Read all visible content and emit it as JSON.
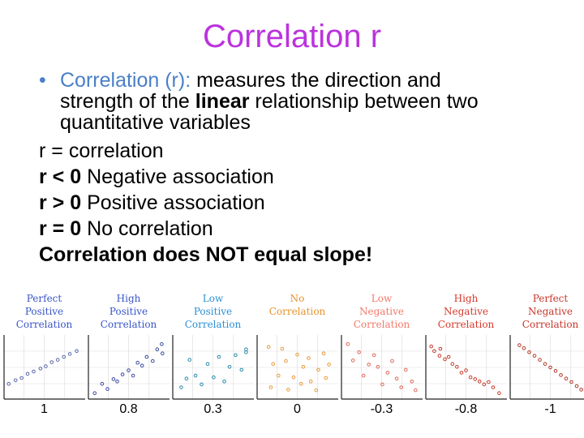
{
  "title": "Correlation r",
  "colors": {
    "title": "#bb33dd",
    "bullet_lead": "#4a7fc8",
    "panel_label_colors": [
      "#3a55c8",
      "#3a55c8",
      "#2c8fd6",
      "#e6922c",
      "#f07a6a",
      "#d63a2a",
      "#c8362a"
    ],
    "dot_colors": [
      "#5a6aa8",
      "#3a4aa0",
      "#2a8aa8",
      "#e89a3a",
      "#e06858",
      "#cc3a2a",
      "#b03a2a"
    ]
  },
  "bullet": {
    "marker": "•",
    "lead": "Correlation (r):",
    "text1": " measures the direction and",
    "text2a": "strength of the ",
    "text2b": "linear",
    "text2c": " relationship between two",
    "text3": "quantitative variables"
  },
  "lines": {
    "l1": "r = correlation",
    "l2_bold": "r < 0",
    "l2_rest": " Negative association",
    "l3_bold": "r > 0",
    "l3_rest": " Positive association",
    "l4_bold": "r = 0",
    "l4_rest": " No correlation",
    "l5": "Correlation does NOT equal slope!"
  },
  "panels": [
    {
      "label": [
        "Perfect",
        "Positive",
        "Correlation"
      ],
      "r": "1"
    },
    {
      "label": [
        "High",
        "Positive",
        "Correlation"
      ],
      "r": "0.8"
    },
    {
      "label": [
        "Low",
        "Positive",
        "Correlation"
      ],
      "r": "0.3"
    },
    {
      "label": [
        "No",
        "Correlation"
      ],
      "r": "0"
    },
    {
      "label": [
        "Low",
        "Negative",
        "Correlation"
      ],
      "r": "-0.3"
    },
    {
      "label": [
        "High",
        "Negative",
        "Correlation"
      ],
      "r": "-0.8"
    },
    {
      "label": [
        "Perfect",
        "Negative",
        "Correlation"
      ],
      "r": "-1"
    }
  ],
  "chart_data": {
    "type": "scatter",
    "title": "",
    "xlabel": "",
    "ylabel": "",
    "xlim": [
      0,
      10
    ],
    "ylim": [
      0,
      10
    ],
    "series": [
      {
        "name": "1",
        "points": [
          [
            0.3,
            2.2
          ],
          [
            1.2,
            2.8
          ],
          [
            2.0,
            3.2
          ],
          [
            2.8,
            3.9
          ],
          [
            3.6,
            4.3
          ],
          [
            4.5,
            4.8
          ],
          [
            5.2,
            5.2
          ],
          [
            6.0,
            5.9
          ],
          [
            6.8,
            6.3
          ],
          [
            7.6,
            6.8
          ],
          [
            8.4,
            7.3
          ],
          [
            9.3,
            7.8
          ]
        ]
      },
      {
        "name": "0.8",
        "points": [
          [
            0.5,
            0.6
          ],
          [
            1.5,
            2.2
          ],
          [
            2.2,
            1.3
          ],
          [
            3.0,
            3.0
          ],
          [
            3.5,
            2.6
          ],
          [
            4.2,
            3.8
          ],
          [
            5.0,
            4.5
          ],
          [
            5.6,
            3.6
          ],
          [
            6.2,
            5.8
          ],
          [
            6.8,
            5.3
          ],
          [
            7.4,
            6.8
          ],
          [
            8.2,
            6.1
          ],
          [
            8.8,
            8.1
          ],
          [
            9.5,
            7.4
          ],
          [
            9.4,
            9.0
          ]
        ]
      },
      {
        "name": "0.3",
        "points": [
          [
            0.8,
            1.6
          ],
          [
            1.5,
            3.1
          ],
          [
            1.9,
            6.3
          ],
          [
            2.7,
            3.6
          ],
          [
            3.5,
            2.1
          ],
          [
            4.3,
            5.6
          ],
          [
            5.1,
            3.3
          ],
          [
            5.8,
            6.8
          ],
          [
            6.5,
            2.6
          ],
          [
            7.2,
            5.1
          ],
          [
            8.0,
            7.1
          ],
          [
            8.8,
            4.6
          ],
          [
            9.4,
            8.1
          ],
          [
            9.4,
            7.6
          ]
        ]
      },
      {
        "name": "0",
        "points": [
          [
            1.2,
            8.5
          ],
          [
            3.0,
            8.2
          ],
          [
            5.0,
            7.2
          ],
          [
            6.5,
            6.6
          ],
          [
            8.5,
            7.4
          ],
          [
            1.8,
            5.6
          ],
          [
            3.5,
            6.1
          ],
          [
            5.8,
            5.1
          ],
          [
            7.8,
            4.6
          ],
          [
            2.5,
            3.6
          ],
          [
            4.5,
            3.3
          ],
          [
            6.8,
            2.6
          ],
          [
            8.8,
            3.2
          ],
          [
            1.5,
            1.6
          ],
          [
            3.8,
            1.2
          ],
          [
            5.5,
            2.2
          ],
          [
            7.5,
            1.1
          ],
          [
            9.2,
            5.5
          ]
        ]
      },
      {
        "name": "-0.3",
        "points": [
          [
            0.5,
            9.0
          ],
          [
            1.2,
            6.2
          ],
          [
            2.0,
            7.6
          ],
          [
            2.6,
            3.6
          ],
          [
            3.3,
            5.5
          ],
          [
            4.0,
            7.1
          ],
          [
            4.5,
            5.1
          ],
          [
            5.1,
            2.1
          ],
          [
            5.8,
            4.1
          ],
          [
            6.4,
            6.1
          ],
          [
            7.0,
            3.1
          ],
          [
            7.6,
            1.6
          ],
          [
            8.2,
            4.6
          ],
          [
            9.0,
            2.6
          ],
          [
            9.5,
            1.1
          ]
        ]
      },
      {
        "name": "-0.8",
        "points": [
          [
            0.4,
            8.6
          ],
          [
            0.8,
            7.8
          ],
          [
            1.5,
            7.0
          ],
          [
            1.6,
            8.2
          ],
          [
            2.2,
            6.4
          ],
          [
            2.7,
            6.8
          ],
          [
            3.2,
            5.6
          ],
          [
            3.8,
            5.1
          ],
          [
            4.4,
            4.1
          ],
          [
            5.0,
            4.5
          ],
          [
            5.6,
            3.3
          ],
          [
            6.2,
            3.0
          ],
          [
            6.8,
            2.6
          ],
          [
            7.4,
            2.1
          ],
          [
            8.0,
            2.5
          ],
          [
            8.6,
            1.6
          ],
          [
            9.4,
            0.6
          ]
        ]
      },
      {
        "name": "-1",
        "points": [
          [
            0.9,
            8.8
          ],
          [
            1.5,
            8.3
          ],
          [
            2.2,
            7.6
          ],
          [
            2.9,
            7.0
          ],
          [
            3.6,
            6.3
          ],
          [
            4.3,
            5.6
          ],
          [
            5.0,
            5.0
          ],
          [
            5.7,
            4.4
          ],
          [
            6.4,
            3.7
          ],
          [
            7.1,
            3.1
          ],
          [
            7.8,
            2.5
          ],
          [
            8.5,
            1.8
          ],
          [
            9.1,
            1.2
          ]
        ]
      }
    ]
  }
}
